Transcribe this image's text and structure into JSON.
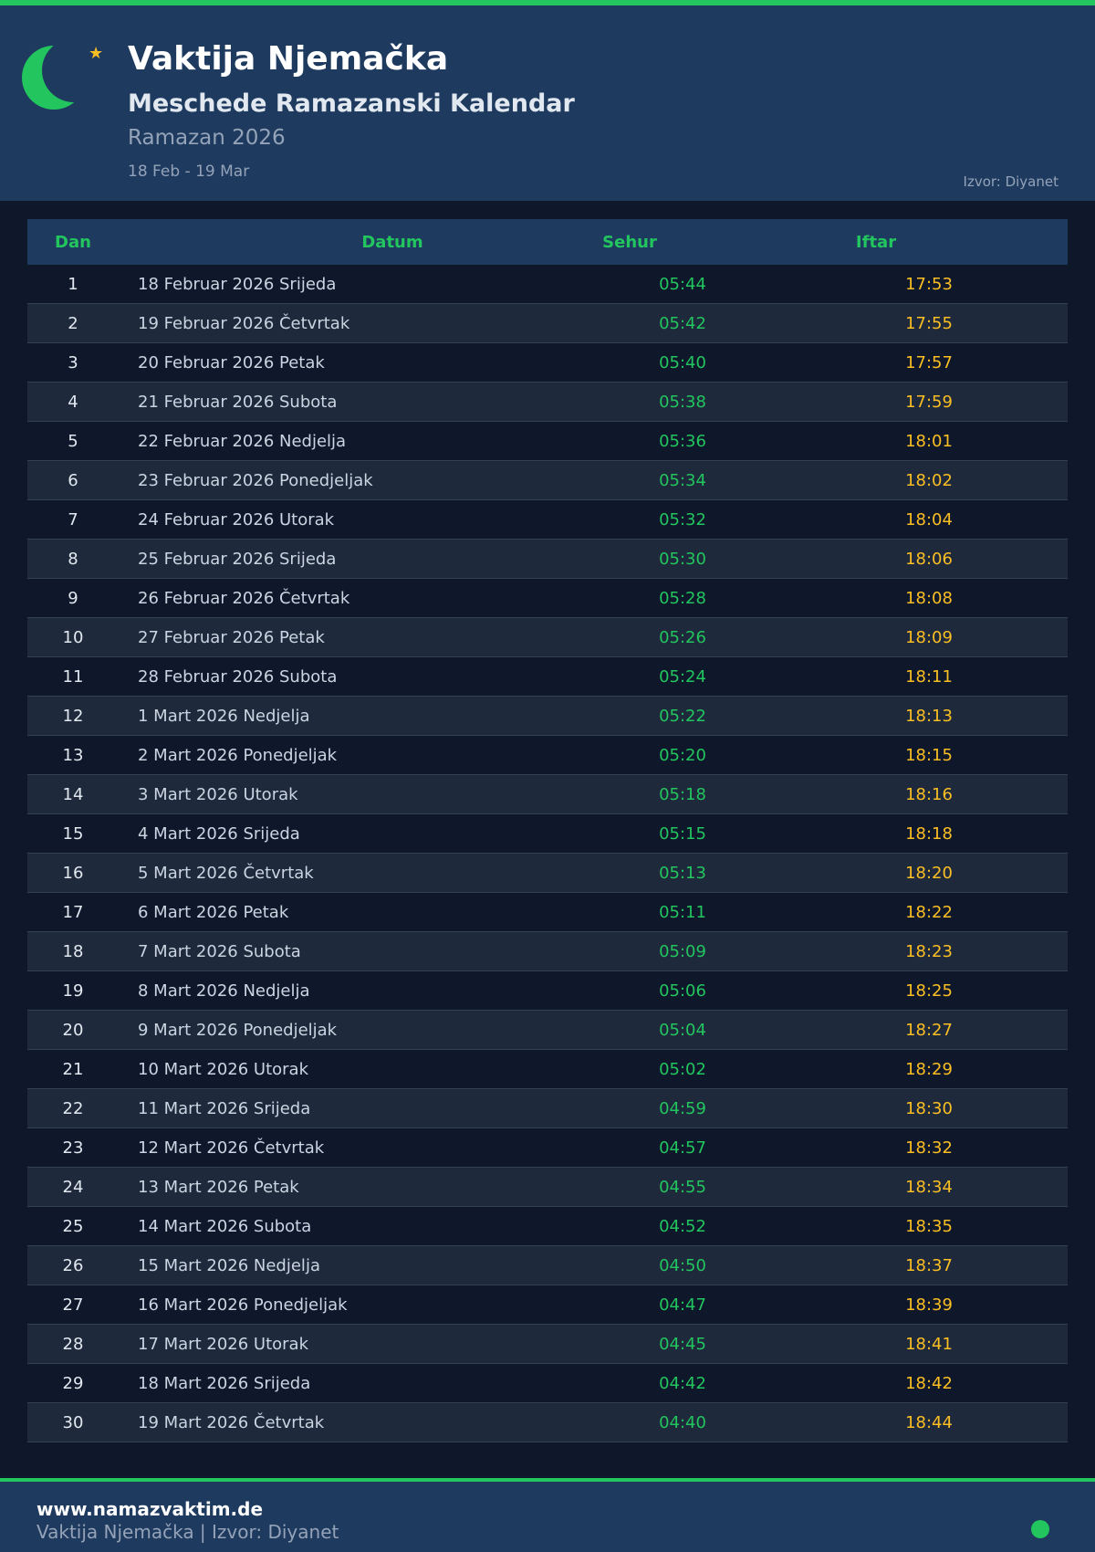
{
  "header": {
    "title": "Vaktija Njemačka",
    "subtitle": "Meschede Ramazanski Kalendar",
    "period": "Ramazan 2026",
    "range": "18 Feb - 19 Mar",
    "source": "Izvor: Diyanet"
  },
  "colors": {
    "accent": "#22c55e",
    "iftar": "#fbbf24",
    "header_bg": "#1e3a5f",
    "page_bg": "#0f172a"
  },
  "table": {
    "columns": [
      "Dan",
      "Datum",
      "Sehur",
      "Iftar"
    ],
    "rows": [
      [
        "1",
        "18 Februar 2026 Srijeda",
        "05:44",
        "17:53"
      ],
      [
        "2",
        "19 Februar 2026 Četvrtak",
        "05:42",
        "17:55"
      ],
      [
        "3",
        "20 Februar 2026 Petak",
        "05:40",
        "17:57"
      ],
      [
        "4",
        "21 Februar 2026 Subota",
        "05:38",
        "17:59"
      ],
      [
        "5",
        "22 Februar 2026 Nedjelja",
        "05:36",
        "18:01"
      ],
      [
        "6",
        "23 Februar 2026 Ponedjeljak",
        "05:34",
        "18:02"
      ],
      [
        "7",
        "24 Februar 2026 Utorak",
        "05:32",
        "18:04"
      ],
      [
        "8",
        "25 Februar 2026 Srijeda",
        "05:30",
        "18:06"
      ],
      [
        "9",
        "26 Februar 2026 Četvrtak",
        "05:28",
        "18:08"
      ],
      [
        "10",
        "27 Februar 2026 Petak",
        "05:26",
        "18:09"
      ],
      [
        "11",
        "28 Februar 2026 Subota",
        "05:24",
        "18:11"
      ],
      [
        "12",
        "1 Mart 2026 Nedjelja",
        "05:22",
        "18:13"
      ],
      [
        "13",
        "2 Mart 2026 Ponedjeljak",
        "05:20",
        "18:15"
      ],
      [
        "14",
        "3 Mart 2026 Utorak",
        "05:18",
        "18:16"
      ],
      [
        "15",
        "4 Mart 2026 Srijeda",
        "05:15",
        "18:18"
      ],
      [
        "16",
        "5 Mart 2026 Četvrtak",
        "05:13",
        "18:20"
      ],
      [
        "17",
        "6 Mart 2026 Petak",
        "05:11",
        "18:22"
      ],
      [
        "18",
        "7 Mart 2026 Subota",
        "05:09",
        "18:23"
      ],
      [
        "19",
        "8 Mart 2026 Nedjelja",
        "05:06",
        "18:25"
      ],
      [
        "20",
        "9 Mart 2026 Ponedjeljak",
        "05:04",
        "18:27"
      ],
      [
        "21",
        "10 Mart 2026 Utorak",
        "05:02",
        "18:29"
      ],
      [
        "22",
        "11 Mart 2026 Srijeda",
        "04:59",
        "18:30"
      ],
      [
        "23",
        "12 Mart 2026 Četvrtak",
        "04:57",
        "18:32"
      ],
      [
        "24",
        "13 Mart 2026 Petak",
        "04:55",
        "18:34"
      ],
      [
        "25",
        "14 Mart 2026 Subota",
        "04:52",
        "18:35"
      ],
      [
        "26",
        "15 Mart 2026 Nedjelja",
        "04:50",
        "18:37"
      ],
      [
        "27",
        "16 Mart 2026 Ponedjeljak",
        "04:47",
        "18:39"
      ],
      [
        "28",
        "17 Mart 2026 Utorak",
        "04:45",
        "18:41"
      ],
      [
        "29",
        "18 Mart 2026 Srijeda",
        "04:42",
        "18:42"
      ],
      [
        "30",
        "19 Mart 2026 Četvrtak",
        "04:40",
        "18:44"
      ]
    ]
  },
  "footer": {
    "site": "www.namazvaktim.de",
    "text": "Vaktija Njemačka | Izvor: Diyanet"
  },
  "icons": {
    "logo": "crescent-star-icon",
    "status": "status-dot-icon"
  }
}
